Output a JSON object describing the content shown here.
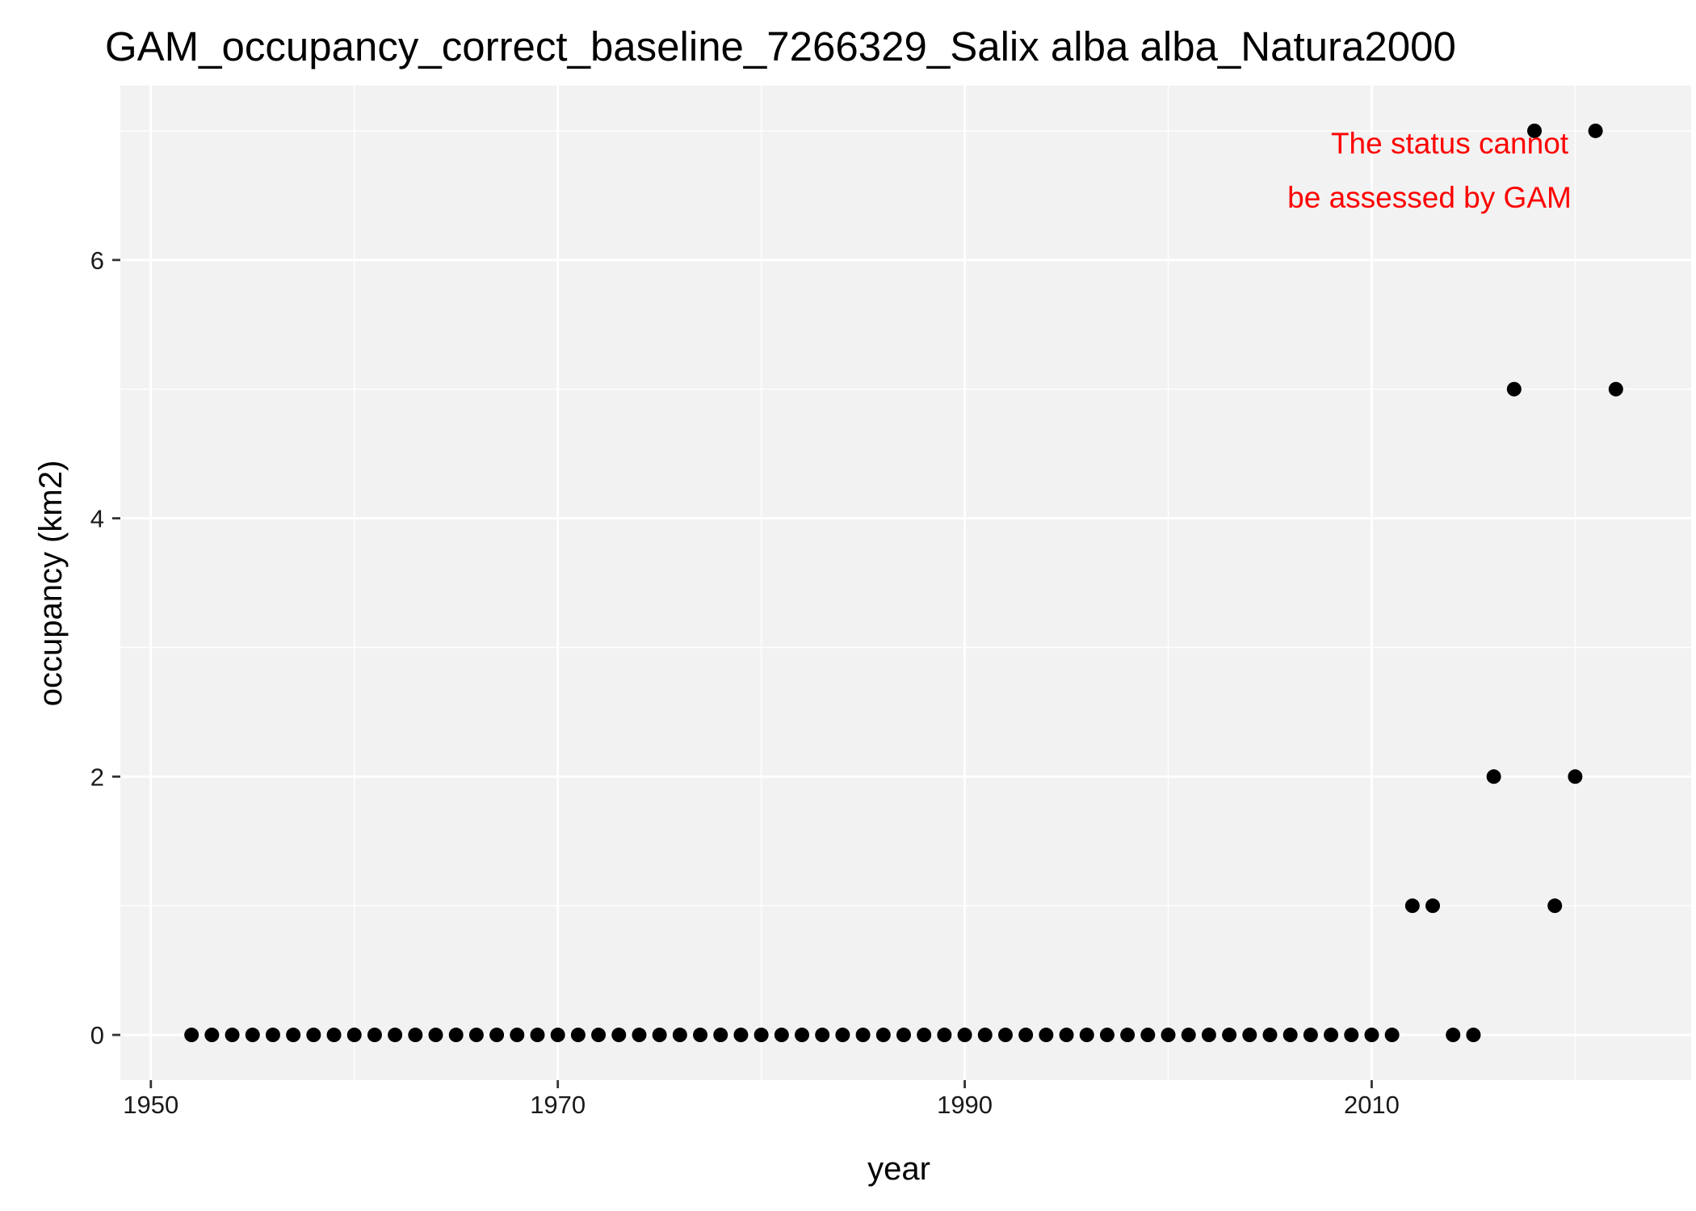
{
  "chart_data": {
    "type": "scatter",
    "title": "GAM_occupancy_correct_baseline_7266329_Salix alba alba_Natura2000",
    "xlabel": "year",
    "ylabel": "occupancy (km2)",
    "xlim": [
      1948.5,
      2025.7
    ],
    "ylim": [
      -0.35,
      7.35
    ],
    "x_ticks": [
      1950,
      1970,
      1990,
      2010
    ],
    "y_ticks": [
      0,
      2,
      4,
      6
    ],
    "x_minor": [
      1960,
      1980,
      2000,
      2020
    ],
    "y_minor": [
      1,
      3,
      5,
      7
    ],
    "grid": true,
    "panel_color": "#f2f2f2",
    "grid_color": "#ffffff",
    "point_color": "#000000",
    "annotation": {
      "lines": [
        "The status cannot",
        "be assessed by GAM"
      ],
      "color": "#ff0000",
      "position": "top-right"
    },
    "series": [
      {
        "x": [
          1952,
          1953,
          1954,
          1955,
          1956,
          1957,
          1958,
          1959,
          1960,
          1961,
          1962,
          1963,
          1964,
          1965,
          1966,
          1967,
          1968,
          1969,
          1970,
          1971,
          1972,
          1973,
          1974,
          1975,
          1976,
          1977,
          1978,
          1979,
          1980,
          1981,
          1982,
          1983,
          1984,
          1985,
          1986,
          1987,
          1988,
          1989,
          1990,
          1991,
          1992,
          1993,
          1994,
          1995,
          1996,
          1997,
          1998,
          1999,
          2000,
          2001,
          2002,
          2003,
          2004,
          2005,
          2006,
          2007,
          2008,
          2009,
          2010,
          2011,
          2012,
          2013,
          2014,
          2015,
          2016,
          2017,
          2018,
          2019,
          2020,
          2021,
          2022
        ],
        "y": [
          0,
          0,
          0,
          0,
          0,
          0,
          0,
          0,
          0,
          0,
          0,
          0,
          0,
          0,
          0,
          0,
          0,
          0,
          0,
          0,
          0,
          0,
          0,
          0,
          0,
          0,
          0,
          0,
          0,
          0,
          0,
          0,
          0,
          0,
          0,
          0,
          0,
          0,
          0,
          0,
          0,
          0,
          0,
          0,
          0,
          0,
          0,
          0,
          0,
          0,
          0,
          0,
          0,
          0,
          0,
          0,
          0,
          0,
          0,
          0,
          1,
          1,
          0,
          0,
          2,
          5,
          7,
          1,
          2,
          7,
          5
        ]
      }
    ]
  }
}
